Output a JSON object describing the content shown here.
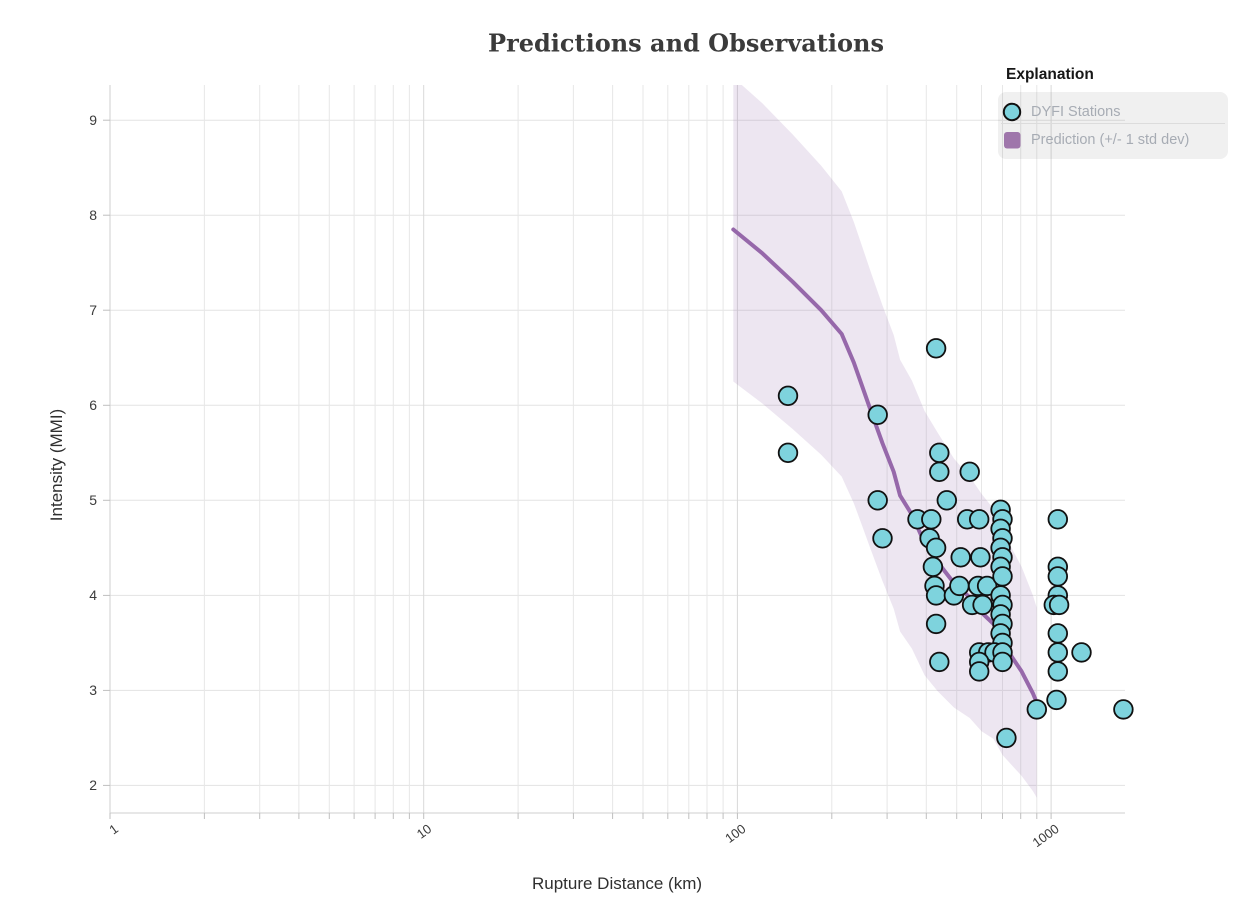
{
  "title": "Predictions and Observations",
  "axes": {
    "x_label": "Rupture Distance (km)",
    "y_label": "Intensity (MMI)",
    "x_tick_labels": [
      "1",
      "10",
      "100",
      "1000"
    ],
    "y_tick_labels": [
      "9",
      "8",
      "7",
      "6",
      "5",
      "4",
      "3",
      "2"
    ]
  },
  "legend": {
    "title": "Explanation",
    "items": [
      {
        "label": "DYFI Stations",
        "marker": "circle",
        "marker_fill": "#7ed3dd",
        "marker_stroke": "#111111"
      },
      {
        "label": "Prediction (+/- 1 std dev)",
        "marker": "square",
        "marker_fill": "#9f76ab"
      }
    ]
  },
  "style": {
    "background": "#ffffff",
    "grid_minor": "#e7e7e7",
    "grid_major": "#d9d9d9",
    "grid_horizontal": "#e3e3e3",
    "axis_border": "#cfcfcf",
    "tick_stub": "#bfbfbf",
    "legend_box_fill": "rgba(60,60,60,0.08)",
    "legend_divider": "#dcdcdc",
    "station_fill": "#7ed3dd",
    "station_stroke": "#111111",
    "prediction_line": "#9668aa",
    "prediction_band": "rgba(150,104,170,0.17)"
  },
  "chart_data": {
    "type": "scatter",
    "title": "Predictions and Observations",
    "xlabel": "Rupture Distance (km)",
    "ylabel": "Intensity (MMI)",
    "x_scale": "log",
    "xlim": [
      1,
      1720
    ],
    "ylim": [
      1.71,
      9.37
    ],
    "x_ticks": [
      1,
      10,
      100,
      1000
    ],
    "y_ticks": [
      9,
      8,
      7,
      6,
      5,
      4,
      3,
      2
    ],
    "grid": true,
    "legend_position": "top-right",
    "series": [
      {
        "name": "DYFI Stations",
        "type": "scatter",
        "marker": {
          "shape": "circle",
          "radius": 9.3,
          "fill": "#7ed3dd",
          "stroke": "#111111",
          "stroke_width": 1.8
        },
        "points_format": [
          "rupture_distance_km",
          "intensity_mmi"
        ],
        "points": [
          [
            145,
            6.1
          ],
          [
            145,
            5.5
          ],
          [
            280,
            5.9
          ],
          [
            280,
            5.0
          ],
          [
            290,
            4.6
          ],
          [
            430,
            6.6
          ],
          [
            440,
            5.5
          ],
          [
            440,
            5.3
          ],
          [
            550,
            5.3
          ],
          [
            375,
            4.8
          ],
          [
            415,
            4.8
          ],
          [
            465,
            5.0
          ],
          [
            410,
            4.6
          ],
          [
            430,
            4.5
          ],
          [
            540,
            4.8
          ],
          [
            590,
            4.8
          ],
          [
            515,
            4.4
          ],
          [
            595,
            4.4
          ],
          [
            420,
            4.3
          ],
          [
            425,
            4.1
          ],
          [
            430,
            4.0
          ],
          [
            490,
            4.0
          ],
          [
            510,
            4.1
          ],
          [
            585,
            4.1
          ],
          [
            625,
            4.1
          ],
          [
            560,
            3.9
          ],
          [
            605,
            3.9
          ],
          [
            430,
            3.7
          ],
          [
            440,
            3.3
          ],
          [
            690,
            4.9
          ],
          [
            700,
            4.8
          ],
          [
            690,
            4.7
          ],
          [
            700,
            4.6
          ],
          [
            690,
            4.5
          ],
          [
            700,
            4.4
          ],
          [
            690,
            4.3
          ],
          [
            700,
            4.2
          ],
          [
            690,
            4.0
          ],
          [
            700,
            3.9
          ],
          [
            690,
            3.8
          ],
          [
            700,
            3.7
          ],
          [
            690,
            3.6
          ],
          [
            700,
            3.5
          ],
          [
            590,
            3.4
          ],
          [
            630,
            3.4
          ],
          [
            660,
            3.4
          ],
          [
            700,
            3.4
          ],
          [
            590,
            3.3
          ],
          [
            590,
            3.2
          ],
          [
            700,
            3.3
          ],
          [
            720,
            2.5
          ],
          [
            900,
            2.8
          ],
          [
            1040,
            2.9
          ],
          [
            1700,
            2.8
          ],
          [
            1050,
            4.8
          ],
          [
            1050,
            4.3
          ],
          [
            1050,
            4.2
          ],
          [
            1050,
            4.0
          ],
          [
            1020,
            3.9
          ],
          [
            1060,
            3.9
          ],
          [
            1050,
            3.6
          ],
          [
            1050,
            3.4
          ],
          [
            1050,
            3.2
          ],
          [
            1250,
            3.4
          ]
        ]
      },
      {
        "name": "Prediction (+/- 1 std dev)",
        "type": "line_with_band",
        "color": "#9668aa",
        "line_width": 4,
        "band_color": "rgba(150,104,170,0.17)",
        "points_format": [
          "rupture_distance_km",
          "predicted_mmi",
          "std_dev"
        ],
        "points": [
          [
            97,
            7.85,
            1.6
          ],
          [
            120,
            7.6,
            1.58
          ],
          [
            150,
            7.3,
            1.55
          ],
          [
            185,
            7.0,
            1.52
          ],
          [
            215,
            6.75,
            1.5
          ],
          [
            235,
            6.45,
            1.48
          ],
          [
            250,
            6.2,
            1.47
          ],
          [
            267,
            5.93,
            1.46
          ],
          [
            290,
            5.6,
            1.45
          ],
          [
            315,
            5.3,
            1.44
          ],
          [
            330,
            5.05,
            1.43
          ],
          [
            360,
            4.85,
            1.41
          ],
          [
            395,
            4.55,
            1.39
          ],
          [
            435,
            4.35,
            1.36
          ],
          [
            490,
            4.13,
            1.31
          ],
          [
            550,
            3.98,
            1.27
          ],
          [
            600,
            3.82,
            1.25
          ],
          [
            655,
            3.7,
            1.21
          ],
          [
            700,
            3.5,
            1.18
          ],
          [
            805,
            3.2,
            1.1
          ],
          [
            875,
            2.97,
            1.03
          ],
          [
            900,
            2.87,
            1.0
          ]
        ]
      }
    ]
  }
}
